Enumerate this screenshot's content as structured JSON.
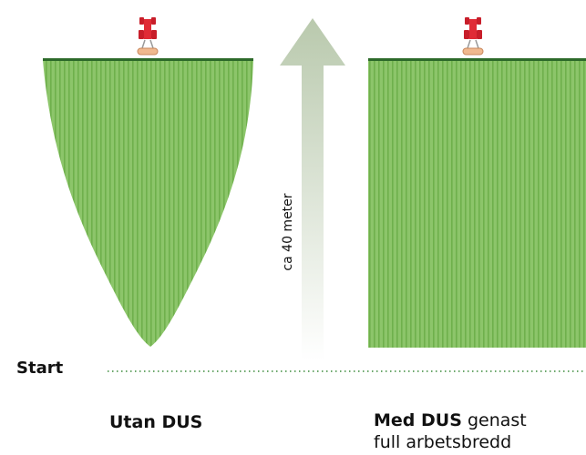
{
  "labels": {
    "start": "Start",
    "distance": "ca 40 meter"
  },
  "left": {
    "title": "Utan DUS"
  },
  "right": {
    "title": "Med DUS",
    "suffix": "genast",
    "line2": "full arbetsbredd"
  }
}
